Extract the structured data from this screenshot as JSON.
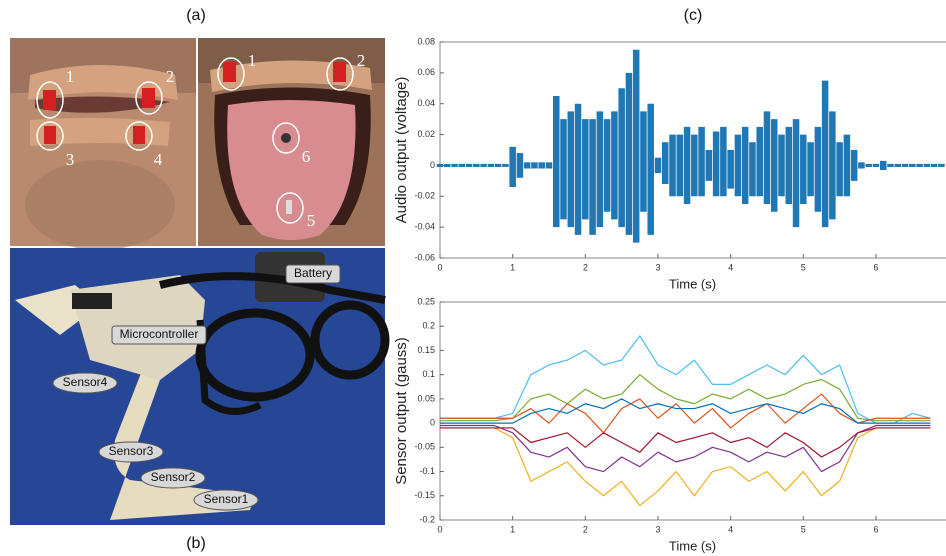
{
  "panel_labels": {
    "a": "(a)",
    "b": "(b)",
    "c": "(c)"
  },
  "photo_a_left": {
    "labels": [
      "1",
      "2",
      "3",
      "4"
    ]
  },
  "photo_a_right": {
    "labels": [
      "1",
      "2",
      "6",
      "5"
    ]
  },
  "photo_b": {
    "labels": [
      "Battery",
      "Microcontroller",
      "Sensor4",
      "Sensor3",
      "Sensor2",
      "Sensor1"
    ]
  },
  "chart_data": [
    {
      "type": "area",
      "xlabel": "Time (s)",
      "ylabel": "Audio output (voltage)",
      "xlim": [
        0,
        6.95
      ],
      "xticks": [
        0,
        1,
        2,
        3,
        4,
        5,
        6
      ],
      "ylim": [
        -0.06,
        0.08
      ],
      "yticks": [
        -0.06,
        -0.04,
        -0.02,
        0,
        0.02,
        0.04,
        0.06,
        0.08
      ],
      "x": [
        0,
        0.1,
        0.2,
        0.3,
        0.4,
        0.5,
        0.6,
        0.7,
        0.8,
        0.9,
        1,
        1.1,
        1.2,
        1.3,
        1.4,
        1.5,
        1.6,
        1.7,
        1.8,
        1.9,
        2,
        2.1,
        2.2,
        2.3,
        2.4,
        2.5,
        2.6,
        2.7,
        2.8,
        2.9,
        3,
        3.1,
        3.2,
        3.3,
        3.4,
        3.5,
        3.6,
        3.7,
        3.8,
        3.9,
        4,
        4.1,
        4.2,
        4.3,
        4.4,
        4.5,
        4.6,
        4.7,
        4.8,
        4.9,
        5,
        5.1,
        5.2,
        5.3,
        5.4,
        5.5,
        5.6,
        5.7,
        5.8,
        5.9,
        6,
        6.1,
        6.2,
        6.3,
        6.4,
        6.5,
        6.6,
        6.7,
        6.8,
        6.9
      ],
      "series": [
        {
          "color": "#1f77b4",
          "values": [
            0.001,
            0.001,
            0.001,
            0.001,
            0.001,
            0.001,
            0.001,
            0.001,
            0.001,
            0.001,
            0.012,
            0.008,
            0.002,
            0.002,
            0.002,
            0.002,
            0.045,
            0.03,
            0.035,
            0.04,
            0.03,
            0.03,
            0.035,
            0.03,
            0.035,
            0.05,
            0.06,
            0.075,
            0.035,
            0.04,
            0.005,
            0.015,
            0.02,
            0.02,
            0.025,
            0.02,
            0.025,
            0.01,
            0.022,
            0.025,
            0.01,
            0.02,
            0.025,
            0.015,
            0.025,
            0.035,
            0.03,
            0.02,
            0.025,
            0.03,
            0.02,
            0.015,
            0.025,
            0.055,
            0.035,
            0.015,
            0.02,
            0.01,
            0.002,
            0.001,
            0.001,
            0.003,
            0.001,
            0.001,
            0.001,
            0.001,
            0.001,
            0.001,
            0.001,
            0.001
          ]
        },
        {
          "color": "#1f77b4",
          "values": [
            -0.001,
            -0.001,
            -0.001,
            -0.001,
            -0.001,
            -0.001,
            -0.001,
            -0.001,
            -0.001,
            -0.001,
            -0.014,
            -0.008,
            -0.002,
            -0.002,
            -0.002,
            -0.002,
            -0.04,
            -0.035,
            -0.04,
            -0.045,
            -0.035,
            -0.045,
            -0.04,
            -0.03,
            -0.035,
            -0.04,
            -0.045,
            -0.05,
            -0.03,
            -0.045,
            -0.005,
            -0.012,
            -0.02,
            -0.02,
            -0.025,
            -0.02,
            -0.02,
            -0.01,
            -0.02,
            -0.02,
            -0.015,
            -0.02,
            -0.025,
            -0.02,
            -0.02,
            -0.025,
            -0.03,
            -0.02,
            -0.025,
            -0.04,
            -0.025,
            -0.02,
            -0.03,
            -0.04,
            -0.035,
            -0.02,
            -0.02,
            -0.01,
            -0.002,
            -0.001,
            -0.001,
            -0.003,
            -0.001,
            -0.001,
            -0.001,
            -0.001,
            -0.001,
            -0.001,
            -0.001,
            -0.001
          ]
        }
      ]
    },
    {
      "type": "line",
      "xlabel": "Time (s)",
      "ylabel": "Sensor output (gauss)",
      "xlim": [
        0,
        6.95
      ],
      "xticks": [
        0,
        1,
        2,
        3,
        4,
        5,
        6
      ],
      "ylim": [
        -0.2,
        0.25
      ],
      "yticks": [
        -0.2,
        -0.15,
        -0.1,
        -0.05,
        0,
        0.05,
        0.1,
        0.15,
        0.2,
        0.25
      ],
      "x": [
        0,
        0.25,
        0.5,
        0.75,
        1,
        1.25,
        1.5,
        1.75,
        2,
        2.25,
        2.5,
        2.75,
        3,
        3.25,
        3.5,
        3.75,
        4,
        4.25,
        4.5,
        4.75,
        5,
        5.25,
        5.5,
        5.75,
        6,
        6.25,
        6.5,
        6.75
      ],
      "series": [
        {
          "color": "#4dbeee",
          "values": [
            0.01,
            0.01,
            0.01,
            0.01,
            0.02,
            0.1,
            0.12,
            0.13,
            0.15,
            0.12,
            0.13,
            0.18,
            0.12,
            0.1,
            0.13,
            0.08,
            0.08,
            0.1,
            0.12,
            0.1,
            0.14,
            0.1,
            0.12,
            0.02,
            0,
            0,
            0.02,
            0.01
          ]
        },
        {
          "color": "#edb120",
          "values": [
            -0.01,
            -0.01,
            -0.01,
            -0.01,
            -0.03,
            -0.12,
            -0.1,
            -0.08,
            -0.12,
            -0.15,
            -0.12,
            -0.17,
            -0.14,
            -0.1,
            -0.15,
            -0.1,
            -0.09,
            -0.12,
            -0.1,
            -0.14,
            -0.1,
            -0.15,
            -0.12,
            -0.03,
            -0.01,
            -0.01,
            -0.01,
            -0.01
          ]
        },
        {
          "color": "#7e2f8e",
          "values": [
            -0.005,
            -0.005,
            -0.005,
            -0.005,
            -0.02,
            -0.06,
            -0.07,
            -0.05,
            -0.09,
            -0.1,
            -0.07,
            -0.09,
            -0.06,
            -0.08,
            -0.07,
            -0.05,
            -0.06,
            -0.08,
            -0.06,
            -0.07,
            -0.05,
            -0.1,
            -0.08,
            -0.02,
            -0.005,
            -0.005,
            -0.005,
            -0.005
          ]
        },
        {
          "color": "#77ac30",
          "values": [
            0.005,
            0.005,
            0.005,
            0.005,
            0.01,
            0.05,
            0.06,
            0.04,
            0.07,
            0.05,
            0.06,
            0.1,
            0.07,
            0.05,
            0.04,
            0.06,
            0.05,
            0.07,
            0.05,
            0.06,
            0.08,
            0.09,
            0.07,
            0.01,
            0.005,
            0.005,
            0.005,
            0.005
          ]
        },
        {
          "color": "#d95319",
          "values": [
            0.01,
            0.01,
            0.01,
            0.01,
            0.01,
            0.03,
            0,
            0.04,
            0.02,
            -0.02,
            0.03,
            0.05,
            0.01,
            0.04,
            0,
            0.03,
            -0.01,
            0.02,
            0.04,
            0,
            0.03,
            0.06,
            0.02,
            0,
            0.01,
            0.01,
            0.01,
            0.01
          ]
        },
        {
          "color": "#0072bd",
          "values": [
            0,
            0,
            0,
            0,
            0,
            0.02,
            0.03,
            0.02,
            0.04,
            0.03,
            0.05,
            0.03,
            0.04,
            0.03,
            0.03,
            0.04,
            0.02,
            0.03,
            0.04,
            0.03,
            0.02,
            0.04,
            0.03,
            0,
            0,
            0,
            0,
            0
          ]
        },
        {
          "color": "#a2142f",
          "values": [
            -0.01,
            -0.01,
            -0.01,
            -0.01,
            -0.01,
            -0.04,
            -0.03,
            -0.02,
            -0.05,
            -0.02,
            -0.04,
            -0.06,
            -0.02,
            -0.04,
            -0.03,
            -0.02,
            -0.04,
            -0.03,
            -0.05,
            -0.02,
            -0.04,
            -0.07,
            -0.05,
            -0.02,
            -0.01,
            -0.01,
            -0.01,
            -0.01
          ]
        }
      ]
    }
  ]
}
